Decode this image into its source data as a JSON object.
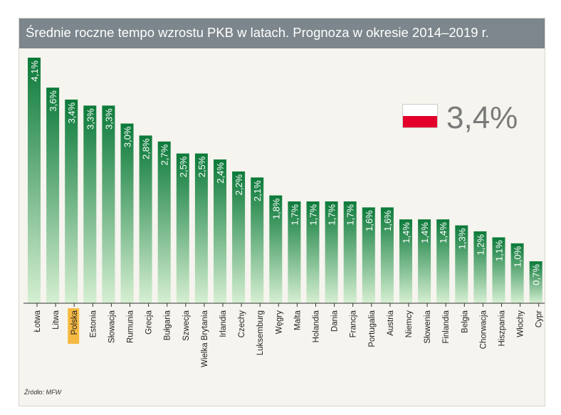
{
  "title": "Średnie roczne tempo wzrostu PKB w latach. Prognoza w okresie 2014–2019 r.",
  "source": "Źródło: MFW",
  "highlight": {
    "country": "Polska",
    "value_label": "3,4%",
    "flag": "poland-flag-icon"
  },
  "colors": {
    "bar_top": "#0c7a3a",
    "bar_bottom": "#d6efd2",
    "title_bg": "#7c868c",
    "highlight_label_bg": "#f5b942",
    "flag_red": "#e2002a"
  },
  "chart_data": {
    "type": "bar",
    "title": "Średnie roczne tempo wzrostu PKB w latach. Prognoza w okresie 2014–2019 r.",
    "xlabel": "",
    "ylabel": "",
    "ylim": [
      0,
      4.1
    ],
    "grid": false,
    "categories": [
      "Łotwa",
      "Litwa",
      "Polska",
      "Estonia",
      "Słowacja",
      "Rumunia",
      "Grecja",
      "Bułgaria",
      "Szwecja",
      "Wielka Brytania",
      "Irlandia",
      "Czechy",
      "Luksemburg",
      "Węgry",
      "Malta",
      "Holandia",
      "Dania",
      "Francja",
      "Portugalia",
      "Austria",
      "Niemcy",
      "Słowenia",
      "Finlandia",
      "Belgia",
      "Chorwacja",
      "Hiszpania",
      "Włochy",
      "Cypr"
    ],
    "values": [
      4.1,
      3.6,
      3.4,
      3.3,
      3.3,
      3.0,
      2.8,
      2.7,
      2.5,
      2.5,
      2.4,
      2.2,
      2.1,
      1.8,
      1.7,
      1.7,
      1.7,
      1.7,
      1.6,
      1.6,
      1.4,
      1.4,
      1.4,
      1.3,
      1.2,
      1.1,
      1.0,
      0.7
    ],
    "labels": [
      "4,1%",
      "3,6%",
      "3,4%",
      "3,3%",
      "3,3%",
      "3,0%",
      "2,8%",
      "2,7%",
      "2,5%",
      "2,5%",
      "2,4%",
      "2,2%",
      "2,1%",
      "1,8%",
      "1,7%",
      "1,7%",
      "1,7%",
      "1,7%",
      "1,6%",
      "1,6%",
      "1,4%",
      "1,4%",
      "1,4%",
      "1,3%",
      "1,2%",
      "1,1%",
      "1,0%",
      "0,7%"
    ],
    "highlight_category": "Polska"
  }
}
